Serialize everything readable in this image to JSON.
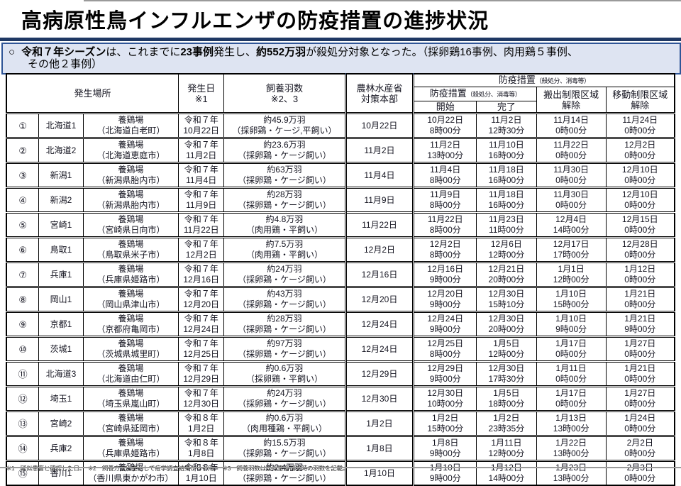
{
  "colors": {
    "accent_navy": "#1F3864",
    "notice_border": "#2F5597",
    "notice_bg": "#DEE4F2",
    "grid_black": "#000000",
    "rule_gray": "#9A9A9A"
  },
  "header": {
    "title": "高病原性鳥インフルエンザの防疫措置の進捗状況"
  },
  "notice": {
    "bullet": "○",
    "segments": [
      {
        "text": "令和７年シーズン",
        "bold": true
      },
      {
        "text": "は、これまでに",
        "bold": false
      },
      {
        "text": "23事例",
        "bold": true
      },
      {
        "text": "発生し、",
        "bold": false
      },
      {
        "text": "約552万羽",
        "bold": true
      },
      {
        "text": "が殺処分対象となった。（採卵鶏16事例、肉用鶏５事例、",
        "bold": false
      },
      {
        "text": "その他２事例）",
        "bold": false,
        "br": true
      }
    ]
  },
  "table": {
    "headers": {
      "location": "発生場所",
      "onset_date": "発生日\n※1",
      "birds": "飼養羽数\n※2、3",
      "maff_hq": "農林水産省\n対策本部",
      "measures_group": "防疫措置",
      "measures_group_note": "（殺処分、消毒等）",
      "measures_sub": "防疫措置",
      "measures_sub_note": "（殺処分、消毒等）",
      "start": "開始",
      "complete": "完了",
      "carryout_lift": "搬出制限区域\n解除",
      "movement_lift": "移動制限区域\n解除"
    },
    "rows": [
      {
        "cells": [
          "①",
          "北海道1",
          "養鶏場\n（北海道白老町）",
          "令和７年\n10月22日",
          "約45.9万羽\n（採卵鶏・ケージ,平飼い）",
          "10月22日",
          "10月22日\n8時00分",
          "11月2日\n12時30分",
          "11月14日\n0時00分",
          "11月24日\n0時00分"
        ]
      },
      {
        "cells": [
          "②",
          "北海道2",
          "養鶏場\n（北海道恵庭市）",
          "令和７年\n11月2日",
          "約23.6万羽\n（採卵鶏・ケージ飼い）",
          "11月2日",
          "11月2日\n13時00分",
          "11月10日\n16時00分",
          "11月22日\n0時00分",
          "12月2日\n0時00分"
        ]
      },
      {
        "cells": [
          "③",
          "新潟1",
          "養鶏場\n（新潟県胎内市）",
          "令和７年\n11月4日",
          "約63万羽\n（採卵鶏・ケージ飼い）",
          "11月4日",
          "11月4日\n8時00分",
          "11月18日\n16時00分",
          "11月30日\n0時00分",
          "12月10日\n0時00分"
        ]
      },
      {
        "cells": [
          "④",
          "新潟2",
          "養鶏場\n（新潟県胎内市）",
          "令和７年\n11月9日",
          "約28万羽\n（採卵鶏・ケージ飼い）",
          "11月9日",
          "11月9日\n8時00分",
          "11月18日\n16時00分",
          "11月30日\n0時00分",
          "12月10日\n0時00分"
        ]
      },
      {
        "cells": [
          "⑤",
          "宮崎1",
          "養鶏場\n（宮崎県日向市）",
          "令和７年\n11月22日",
          "約4.8万羽\n（肉用鶏・平飼い）",
          "11月22日",
          "11月22日\n8時00分",
          "11月23日\n11時00分",
          "12月4日\n14時00分",
          "12月15日\n0時00分"
        ]
      },
      {
        "cells": [
          "⑥",
          "鳥取1",
          "養鶏場\n（鳥取県米子市）",
          "令和７年\n12月2日",
          "約7.5万羽\n（肉用鶏・平飼い）",
          "12月2日",
          "12月2日\n8時00分",
          "12月6日\n12時00分",
          "12月17日\n17時00分",
          "12月28日\n0時00分"
        ]
      },
      {
        "cells": [
          "⑦",
          "兵庫1",
          "養鶏場\n（兵庫県姫路市）",
          "令和７年\n12月16日",
          "約24万羽\n（採卵鶏・ケージ飼い）",
          "12月16日",
          "12月16日\n9時00分",
          "12月21日\n20時00分",
          "1月1日\n12時00分",
          "1月12日\n0時00分"
        ]
      },
      {
        "cells": [
          "⑧",
          "岡山1",
          "養鶏場\n（岡山県津山市）",
          "令和７年\n12月20日",
          "約43万羽\n（採卵鶏・ケージ飼い）",
          "12月20日",
          "12月20日\n9時00分",
          "12月30日\n15時10分",
          "1月10日\n15時00分",
          "1月21日\n0時00分"
        ]
      },
      {
        "cells": [
          "⑨",
          "京都1",
          "養鶏場\n（京都府亀岡市）",
          "令和７年\n12月24日",
          "約28万羽\n（採卵鶏・ケージ飼い）",
          "12月24日",
          "12月24日\n9時00分",
          "12月30日\n20時00分",
          "1月10日\n9時00分",
          "1月21日\n9時00分"
        ]
      },
      {
        "cells": [
          "⑩",
          "茨城1",
          "養鶏場\n（茨城県城里町）",
          "令和７年\n12月25日",
          "約97万羽\n（採卵鶏・ケージ飼い）",
          "12月24日",
          "12月25日\n8時00分",
          "1月5日\n12時00分",
          "1月17日\n0時00分",
          "1月27日\n0時00分"
        ]
      },
      {
        "cells": [
          "⑪",
          "北海道3",
          "養鶏場\n（北海道由仁町）",
          "令和７年\n12月29日",
          "約0.6万羽\n（採卵鶏・平飼い）",
          "12月29日",
          "12月29日\n9時00分",
          "12月30日\n17時30分",
          "1月11日\n0時00分",
          "1月21日\n0時00分"
        ]
      },
      {
        "cells": [
          "⑫",
          "埼玉1",
          "養鶏場\n（埼玉県嵐山町）",
          "令和７年\n12月30日",
          "約24万羽\n（採卵鶏・ケージ飼い）",
          "12月30日",
          "12月30日\n10時00分",
          "1月5日\n18時00分",
          "1月17日\n0時00分",
          "1月27日\n0時00分"
        ]
      },
      {
        "cells": [
          "⑬",
          "宮崎2",
          "養鶏場\n（宮崎県延岡市）",
          "令和８年\n1月2日",
          "約0.6万羽\n（肉用種鶏・平飼い）",
          "1月2日",
          "1月2日\n15時00分",
          "1月2日\n23時35分",
          "1月13日\n13時00分",
          "1月24日\n0時00分"
        ]
      },
      {
        "cells": [
          "⑭",
          "兵庫2",
          "養鶏場\n（兵庫県姫路市）",
          "令和８年\n1月8日",
          "約15.5万羽\n（採卵鶏・ケージ飼い）",
          "1月8日",
          "1月8日\n9時00分",
          "1月11日\n12時00分",
          "1月22日\n13時00分",
          "2月2日\n0時00分"
        ]
      },
      {
        "cells": [
          "⑮",
          "香川1",
          "養鶏場\n（香川県東かがわ市）",
          "令和８年\n1月10日",
          "約2.4万羽\n（採卵鶏・ケージ飼い）",
          "1月10日",
          "1月10日\n9時00分",
          "1月12日\n14時00分",
          "1月23日\n13時00分",
          "2月3日\n0時00分"
        ]
      }
    ]
  },
  "footnote": "※1　疑似患畜と確認した日。　※2　飼養方法は主として疫学調査結果から引用。　※3　飼養羽数は疑似患畜確認時の羽数を記載。"
}
